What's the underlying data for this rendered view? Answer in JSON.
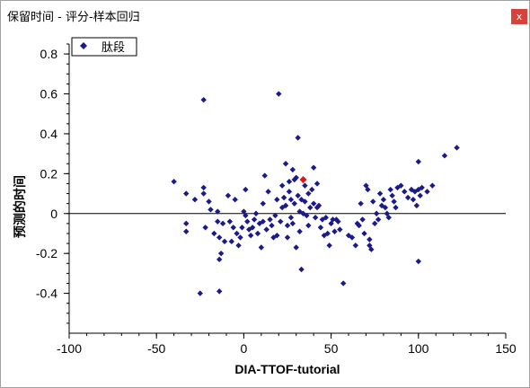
{
  "window": {
    "title": "保留时间 - 评分-样本回归",
    "close_label": "x"
  },
  "colors": {
    "point": "#1a1a8c",
    "highlight": "#e81010",
    "zero_line": "#000000"
  },
  "chart_data": {
    "type": "scatter",
    "xlabel": "DIA-TTOF-tutorial",
    "ylabel": "预测的时间",
    "xlim": [
      -100,
      150
    ],
    "ylim": [
      -0.6,
      0.85
    ],
    "xticks": [
      "-100",
      "-50",
      "0",
      "50",
      "100",
      "150"
    ],
    "xtick_values": [
      -100,
      -50,
      0,
      50,
      100,
      150
    ],
    "yticks": [
      "0.8",
      "0.6",
      "0.4",
      "0.2",
      "0",
      "-0.2",
      "-0.4"
    ],
    "ytick_values": [
      0.8,
      0.6,
      0.4,
      0.2,
      0,
      -0.2,
      -0.4
    ],
    "zero_line": 0,
    "legend": {
      "entries": [
        "肽段"
      ],
      "placement": "top-left"
    },
    "series": [
      {
        "name": "肽段",
        "points": [
          [
            -40,
            0.16
          ],
          [
            -33,
            0.1
          ],
          [
            -33,
            -0.05
          ],
          [
            -33,
            -0.09
          ],
          [
            -28,
            0.07
          ],
          [
            -25,
            -0.4
          ],
          [
            -23,
            0.57
          ],
          [
            -23,
            0.13
          ],
          [
            -23,
            0.1
          ],
          [
            -22,
            -0.07
          ],
          [
            -20,
            0.06
          ],
          [
            -19,
            0.02
          ],
          [
            -17,
            -0.1
          ],
          [
            -15,
            0.01
          ],
          [
            -15,
            -0.04
          ],
          [
            -14,
            -0.12
          ],
          [
            -14,
            -0.23
          ],
          [
            -14,
            -0.39
          ],
          [
            -13,
            -0.2
          ],
          [
            -12,
            -0.05
          ],
          [
            -11,
            -0.14
          ],
          [
            -9,
            0.09
          ],
          [
            -8,
            -0.04
          ],
          [
            -7,
            -0.14
          ],
          [
            -6,
            -0.07
          ],
          [
            -5,
            0.07
          ],
          [
            -4,
            -0.1
          ],
          [
            -3,
            -0.16
          ],
          [
            -2,
            -0.12
          ],
          [
            -1,
            -0.07
          ],
          [
            0,
            0.01
          ],
          [
            1,
            0.12
          ],
          [
            1,
            -0.01
          ],
          [
            2,
            -0.04
          ],
          [
            3,
            -0.08
          ],
          [
            4,
            -0.11
          ],
          [
            5,
            -0.07
          ],
          [
            6,
            -0.03
          ],
          [
            7,
            0.0
          ],
          [
            8,
            -0.1
          ],
          [
            9,
            -0.05
          ],
          [
            10,
            -0.17
          ],
          [
            11,
            0.05
          ],
          [
            11,
            -0.04
          ],
          [
            12,
            0.19
          ],
          [
            13,
            -0.08
          ],
          [
            14,
            0.11
          ],
          [
            15,
            -0.03
          ],
          [
            16,
            -0.06
          ],
          [
            17,
            -0.12
          ],
          [
            18,
            -0.01
          ],
          [
            19,
            0.07
          ],
          [
            19,
            -0.11
          ],
          [
            20,
            0.6
          ],
          [
            21,
            -0.04
          ],
          [
            22,
            0.14
          ],
          [
            22,
            0.03
          ],
          [
            23,
            0.08
          ],
          [
            24,
            0.25
          ],
          [
            24,
            0.04
          ],
          [
            25,
            -0.06
          ],
          [
            25,
            -0.12
          ],
          [
            26,
            0.11
          ],
          [
            26,
            0.16
          ],
          [
            27,
            0.07
          ],
          [
            27,
            -0.02
          ],
          [
            28,
            0.22
          ],
          [
            28,
            -0.05
          ],
          [
            29,
            0.17
          ],
          [
            29,
            0.05
          ],
          [
            30,
            0.18
          ],
          [
            30,
            -0.17
          ],
          [
            31,
            0.38
          ],
          [
            31,
            0.09
          ],
          [
            32,
            0.01
          ],
          [
            32,
            -0.09
          ],
          [
            33,
            -0.28
          ],
          [
            33,
            0.07
          ],
          [
            34,
            0.0
          ],
          [
            35,
            0.14
          ],
          [
            35,
            0.06
          ],
          [
            36,
            -0.01
          ],
          [
            37,
            0.1
          ],
          [
            37,
            -0.06
          ],
          [
            38,
            0.03
          ],
          [
            39,
            0.12
          ],
          [
            40,
            0.23
          ],
          [
            40,
            0.05
          ],
          [
            41,
            -0.02
          ],
          [
            42,
            0.15
          ],
          [
            42,
            0.03
          ],
          [
            43,
            0.04
          ],
          [
            44,
            -0.07
          ],
          [
            45,
            -0.03
          ],
          [
            46,
            -0.11
          ],
          [
            47,
            -0.02
          ],
          [
            48,
            -0.1
          ],
          [
            49,
            -0.16
          ],
          [
            50,
            -0.05
          ],
          [
            51,
            -0.03
          ],
          [
            52,
            -0.09
          ],
          [
            53,
            -0.03
          ],
          [
            54,
            -0.04
          ],
          [
            55,
            -0.08
          ],
          [
            57,
            -0.35
          ],
          [
            60,
            -0.11
          ],
          [
            62,
            -0.12
          ],
          [
            64,
            -0.16
          ],
          [
            65,
            -0.05
          ],
          [
            66,
            -0.06
          ],
          [
            67,
            0.05
          ],
          [
            68,
            -0.03
          ],
          [
            69,
            -0.1
          ],
          [
            70,
            0.14
          ],
          [
            71,
            0.12
          ],
          [
            72,
            -0.13
          ],
          [
            72,
            -0.16
          ],
          [
            73,
            -0.18
          ],
          [
            74,
            0.06
          ],
          [
            75,
            -0.05
          ],
          [
            76,
            0.0
          ],
          [
            77,
            -0.03
          ],
          [
            78,
            0.1
          ],
          [
            79,
            0.04
          ],
          [
            80,
            0.07
          ],
          [
            81,
            0.03
          ],
          [
            82,
            0.0
          ],
          [
            83,
            -0.02
          ],
          [
            84,
            0.12
          ],
          [
            85,
            0.09
          ],
          [
            86,
            0.06
          ],
          [
            87,
            0.03
          ],
          [
            88,
            0.13
          ],
          [
            90,
            0.14
          ],
          [
            92,
            0.11
          ],
          [
            94,
            0.08
          ],
          [
            96,
            0.12
          ],
          [
            97,
            0.07
          ],
          [
            98,
            0.11
          ],
          [
            99,
            0.04
          ],
          [
            100,
            0.12
          ],
          [
            100,
            0.26
          ],
          [
            100,
            -0.24
          ],
          [
            101,
            0.09
          ],
          [
            102,
            0.13
          ],
          [
            105,
            0.11
          ],
          [
            108,
            0.14
          ],
          [
            115,
            0.29
          ],
          [
            122,
            0.33
          ]
        ]
      }
    ],
    "highlight_point": [
      34,
      0.17
    ]
  }
}
